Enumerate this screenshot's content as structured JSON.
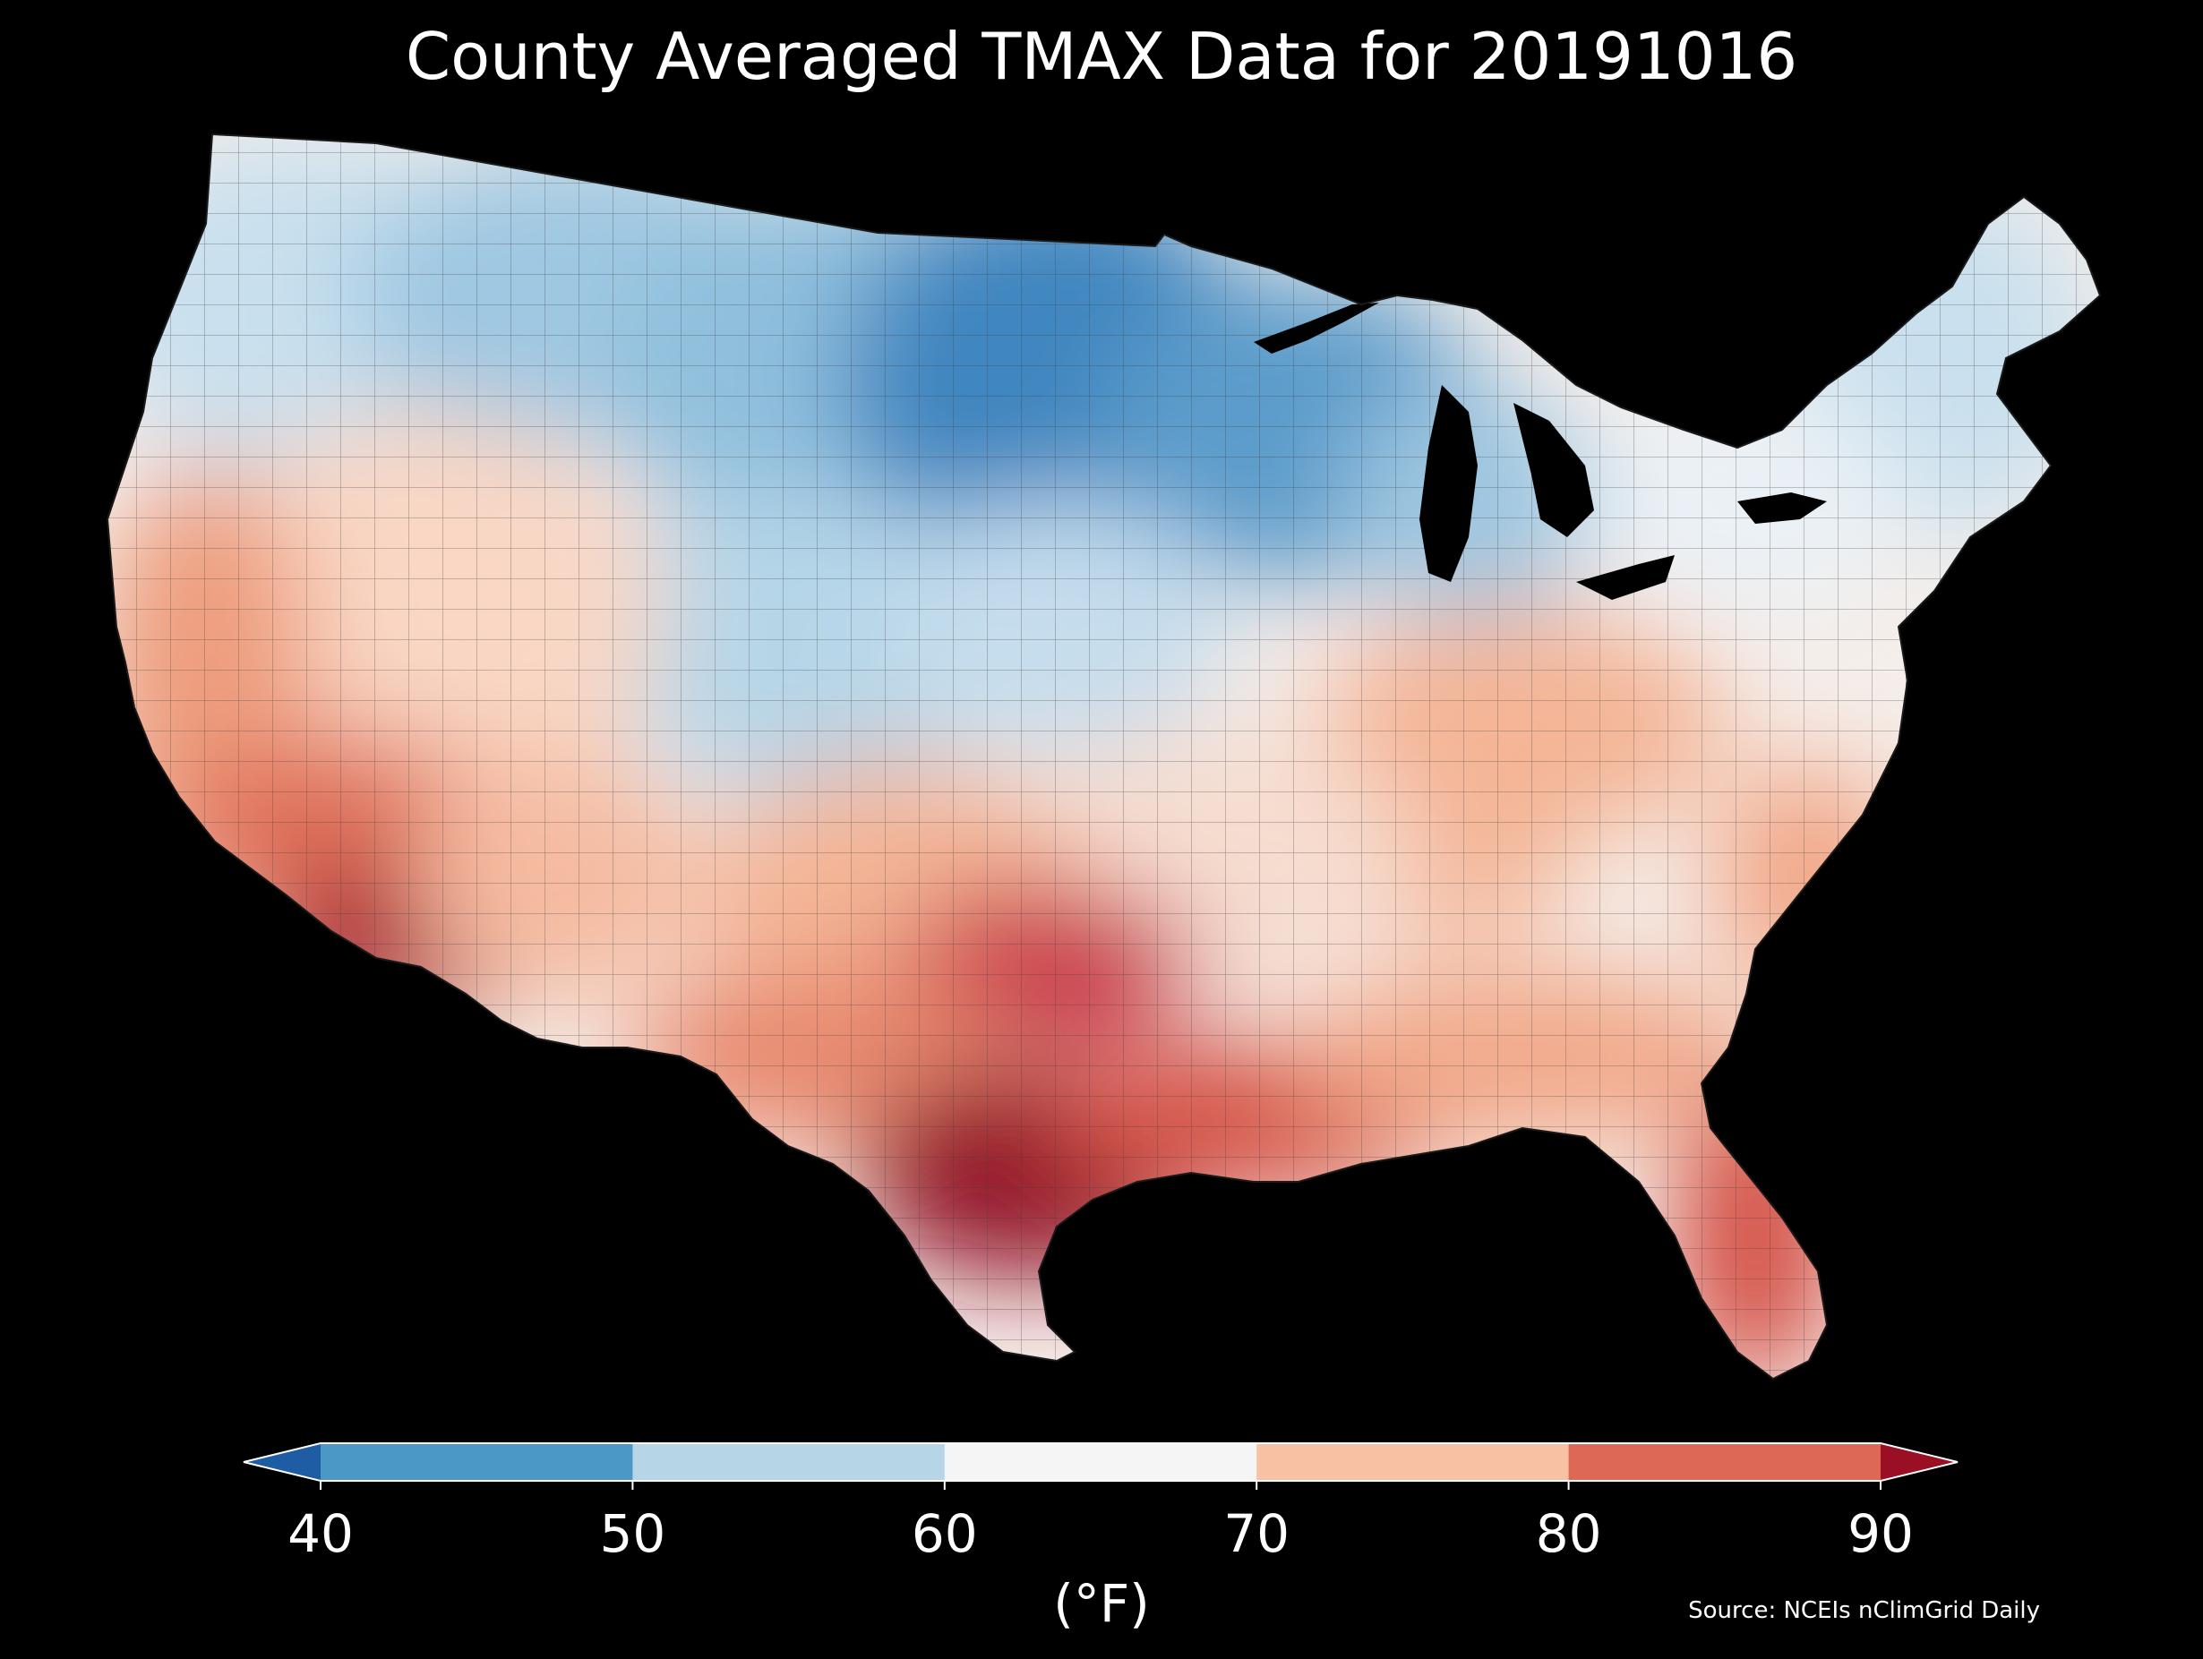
{
  "title": "County Averaged TMAX Data for 20191016",
  "colorbar": {
    "ticks": [
      "40",
      "50",
      "60",
      "70",
      "80",
      "90"
    ],
    "unit_label": "(°F)",
    "bins": [
      {
        "range": "<40",
        "color": "#1e5da4"
      },
      {
        "range": "40-50",
        "color": "#4b98c7"
      },
      {
        "range": "50-60",
        "color": "#b6d6e8"
      },
      {
        "range": "60-70",
        "color": "#f5f5f5"
      },
      {
        "range": "70-80",
        "color": "#f8c1a4"
      },
      {
        "range": "80-90",
        "color": "#dd6855"
      },
      {
        "range": ">90",
        "color": "#9a0f24"
      }
    ]
  },
  "source": "Source: NCEIs nClimGrid Daily",
  "map_regions": [
    {
      "name": "pacific-northwest",
      "tmax_band": "50-60",
      "color": "#c9e0ee"
    },
    {
      "name": "northern-rockies",
      "tmax_band": "40-50",
      "color": "#8fbfdd"
    },
    {
      "name": "northern-plains-upper-midwest",
      "tmax_band": "40-50",
      "color": "#3f86c0"
    },
    {
      "name": "central-plains",
      "tmax_band": "50-60",
      "color": "#b6d6e8"
    },
    {
      "name": "great-basin",
      "tmax_band": "70-80",
      "color": "#f9d7c4"
    },
    {
      "name": "california-coast",
      "tmax_band": "70-80",
      "color": "#ee9e7e"
    },
    {
      "name": "desert-southwest",
      "tmax_band": "80-90",
      "color": "#d65a48"
    },
    {
      "name": "southern-arizona",
      "tmax_band": ">90",
      "color": "#a8162b"
    },
    {
      "name": "ohio-valley-mid-atlantic",
      "tmax_band": "60-70",
      "color": "#f7ece5"
    },
    {
      "name": "appalachia-kentucky",
      "tmax_band": "70-80",
      "color": "#f4b596"
    },
    {
      "name": "northeast-new-england",
      "tmax_band": "50-60",
      "color": "#d7e7f1"
    },
    {
      "name": "southern-plains-texas",
      "tmax_band": "80-90",
      "color": "#e47a62"
    },
    {
      "name": "north-texas-oklahoma-hot-spot",
      "tmax_band": "80-90",
      "color": "#c9394a"
    },
    {
      "name": "south-texas",
      "tmax_band": ">90",
      "color": "#94122a"
    },
    {
      "name": "gulf-coast",
      "tmax_band": "80-90",
      "color": "#d65549"
    },
    {
      "name": "southeast",
      "tmax_band": "70-80",
      "color": "#f2a98a"
    },
    {
      "name": "florida",
      "tmax_band": "80-90",
      "color": "#d44f45"
    }
  ]
}
